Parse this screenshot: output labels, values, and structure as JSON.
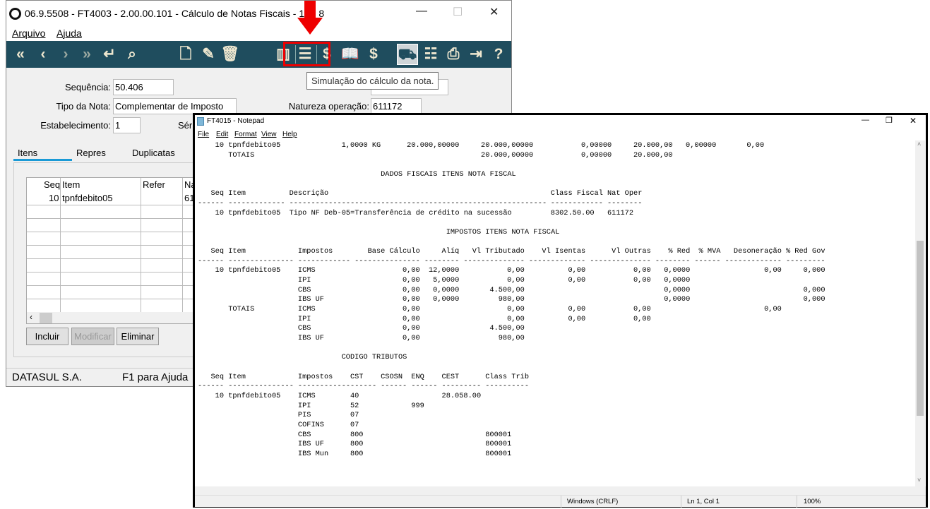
{
  "erp": {
    "title": "06.9.5508 - FT4003 - 2.00.00.101 - Cálculo de Notas Fiscais - 10 - 8",
    "menu": [
      "Arquivo",
      "Ajuda"
    ],
    "toolbar_icons": [
      "first-icon",
      "previous-icon",
      "next-icon",
      "last-icon",
      "return-icon",
      "search-icon",
      "new-document-icon",
      "edit-document-icon",
      "trash-icon",
      "calculator-icon",
      "simulate-calculation-icon",
      "dollar-icon",
      "book-icon",
      "document-dollar-icon",
      "truck-icon",
      "tree-icon",
      "print-icon",
      "exit-icon",
      "help-icon"
    ],
    "tooltip": "Simulação do cálculo da nota.",
    "accent": "#1f4d5e",
    "highlight": "#e00000",
    "fields": {
      "sequencia_label": "Sequência:",
      "sequencia": "50.406",
      "tipo_label": "Tipo da Nota:",
      "tipo": "Complementar de Imposto",
      "estab_label": "Estabelecimento:",
      "estab": "1",
      "serie_label": "Séri",
      "natureza_label": "Natureza operação:",
      "natureza": "611172"
    },
    "tabs": [
      "Itens",
      "Repres",
      "Duplicatas"
    ],
    "grid": {
      "headers": [
        "Seq",
        "Item",
        "Refer",
        "Na"
      ],
      "row": [
        "10",
        "tpnfdebito05",
        "",
        "61"
      ]
    },
    "buttons": {
      "incluir": "Incluir",
      "modificar": "Modificar",
      "eliminar": "Eliminar"
    },
    "status": {
      "company": "DATASUL S.A.",
      "help": "F1 para Ajuda"
    }
  },
  "notepad": {
    "title": "FT4015 - Notepad",
    "menu": [
      "File",
      "Edit",
      "Format",
      "View",
      "Help"
    ],
    "top_rows": [
      [
        "10",
        "tpnfdebito05",
        "1,0000 KG",
        "20.000,00000",
        "20.000,00000",
        "0,00000",
        "20.000,00",
        "0,00000",
        "0,00"
      ],
      [
        "",
        "TOTAIS",
        "",
        "",
        "20.000,00000",
        "0,00000",
        "20.000,00",
        "",
        ""
      ]
    ],
    "dados": {
      "title": "DADOS FISCAIS ITENS NOTA FISCAL",
      "header": [
        "Seq",
        "Item",
        "Descrição",
        "Class Fiscal",
        "Nat Oper"
      ],
      "rows": [
        [
          "10",
          "tpnfdebito05",
          "Tipo NF Deb-05=Transferência de crédito na sucessão",
          "8302.50.00",
          "611172"
        ]
      ]
    },
    "impostos": {
      "title": "IMPOSTOS ITENS NOTA FISCAL",
      "header": [
        "Seq",
        "Item",
        "Impostos",
        "Base Cálculo",
        "Alíq",
        "Vl Tributado",
        "Vl Isentas",
        "Vl Outras",
        "% Red",
        "% MVA",
        "Desoneração",
        "% Red Gov"
      ],
      "rows": [
        [
          "10",
          "tpnfdebito05",
          "ICMS",
          "0,00",
          "12,0000",
          "0,00",
          "0,00",
          "0,00",
          "0,0000",
          "",
          "0,00",
          "0,000"
        ],
        [
          "",
          "",
          "IPI",
          "0,00",
          "5,0000",
          "0,00",
          "0,00",
          "0,00",
          "0,0000",
          "",
          "",
          ""
        ],
        [
          "",
          "",
          "CBS",
          "0,00",
          "0,0000",
          "4.500,00",
          "",
          "",
          "0,0000",
          "",
          "",
          "0,000"
        ],
        [
          "",
          "",
          "IBS UF",
          "0,00",
          "0,0000",
          "980,00",
          "",
          "",
          "0,0000",
          "",
          "",
          "0,000"
        ],
        [
          "",
          "TOTAIS",
          "ICMS",
          "0,00",
          "",
          "0,00",
          "0,00",
          "0,00",
          "",
          "",
          "0,00",
          ""
        ],
        [
          "",
          "",
          "IPI",
          "0,00",
          "",
          "0,00",
          "0,00",
          "0,00",
          "",
          "",
          "",
          ""
        ],
        [
          "",
          "",
          "CBS",
          "0,00",
          "",
          "4.500,00",
          "",
          "",
          "",
          "",
          "",
          ""
        ],
        [
          "",
          "",
          "IBS UF",
          "0,00",
          "",
          "980,00",
          "",
          "",
          "",
          "",
          "",
          ""
        ]
      ]
    },
    "codigo": {
      "title": "CODIGO TRIBUTOS",
      "header": [
        "Seq",
        "Item",
        "Impostos",
        "CST",
        "CSOSN",
        "ENQ",
        "CEST",
        "Class Trib"
      ],
      "rows": [
        [
          "10",
          "tpnfdebito05",
          "ICMS",
          "40",
          "",
          "",
          "28.058.00",
          ""
        ],
        [
          "",
          "",
          "IPI",
          "52",
          "",
          "999",
          "",
          ""
        ],
        [
          "",
          "",
          "PIS",
          "07",
          "",
          "",
          "",
          ""
        ],
        [
          "",
          "",
          "COFINS",
          "07",
          "",
          "",
          "",
          ""
        ],
        [
          "",
          "",
          "CBS",
          "800",
          "",
          "",
          "",
          "800001"
        ],
        [
          "",
          "",
          "IBS UF",
          "800",
          "",
          "",
          "",
          "800001"
        ],
        [
          "",
          "",
          "IBS Mun",
          "800",
          "",
          "",
          "",
          "800001"
        ]
      ]
    },
    "status": {
      "eol": "Windows (CRLF)",
      "position": "Ln 1, Col 1",
      "zoom": "100%"
    }
  }
}
